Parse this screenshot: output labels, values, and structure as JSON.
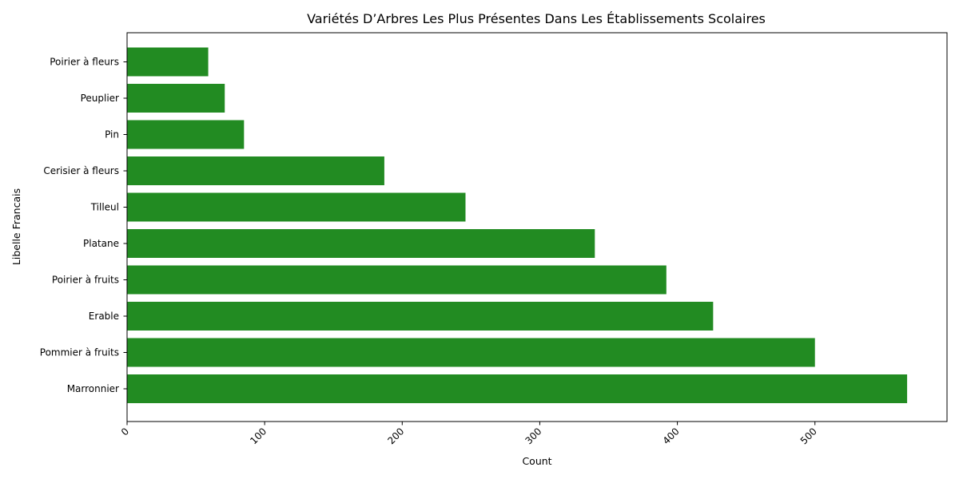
{
  "chart_data": {
    "type": "bar",
    "orientation": "horizontal",
    "title": "Variétés D’Arbres Les Plus Présentes Dans Les Établissements Scolaires",
    "xlabel": "Count",
    "ylabel": "Libelle Francais",
    "categories": [
      "Marronnier",
      "Pommier à fruits",
      "Erable",
      "Poirier à fruits",
      "Platane",
      "Tilleul",
      "Cerisier à fleurs",
      "Pin",
      "Peuplier",
      "Poirier à fleurs"
    ],
    "values": [
      567,
      500,
      426,
      392,
      340,
      246,
      187,
      85,
      71,
      59
    ],
    "xlim": [
      0,
      596
    ],
    "xticks": [
      0,
      100,
      200,
      300,
      400,
      500
    ],
    "bar_color": "#228B22",
    "grid": false,
    "legend": "none"
  }
}
